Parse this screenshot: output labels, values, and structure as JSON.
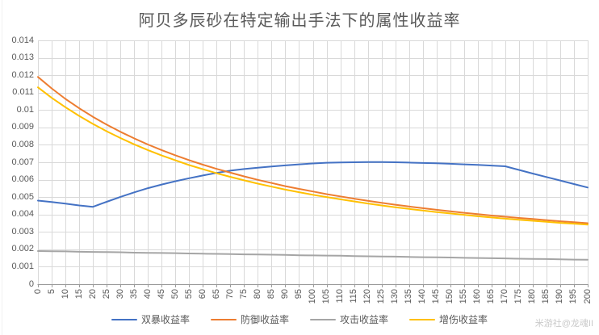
{
  "title": "阿贝多辰砂在特定输出手法下的属性收益率",
  "watermark": "米游社@龙魂II",
  "colors": {
    "background": "#FFFFFF",
    "title_text": "#595959",
    "axis_text": "#595959",
    "gridline": "#D9D9D9",
    "axis_line": "#9B9B9B",
    "watermark_text": "#C9C9C9",
    "series_blue": "#4472C4",
    "series_orange": "#ED7D31",
    "series_gray": "#A5A5A5",
    "series_yellow": "#FFC000"
  },
  "chart_data": {
    "type": "line",
    "title": "阿贝多辰砂在特定输出手法下的属性收益率",
    "xlabel": "",
    "ylabel": "",
    "grid": true,
    "legend_position": "bottom",
    "ylim": [
      0,
      0.014
    ],
    "y_tick_labels": [
      "0",
      "0.001",
      "0.002",
      "0.003",
      "0.004",
      "0.005",
      "0.006",
      "0.007",
      "0.008",
      "0.009",
      "0.01",
      "0.011",
      "0.012",
      "0.013",
      "0.014"
    ],
    "x": [
      0,
      5,
      10,
      15,
      20,
      25,
      30,
      35,
      40,
      45,
      50,
      55,
      60,
      65,
      70,
      75,
      80,
      85,
      90,
      95,
      100,
      105,
      110,
      115,
      120,
      125,
      130,
      135,
      140,
      145,
      150,
      155,
      160,
      165,
      170,
      175,
      180,
      185,
      190,
      195,
      200
    ],
    "series": [
      {
        "name": "双暴收益率",
        "color": "#4472C4",
        "values": [
          0.0048,
          0.00472,
          0.00462,
          0.00452,
          0.00444,
          0.00473,
          0.00501,
          0.00527,
          0.00551,
          0.00572,
          0.00591,
          0.00608,
          0.00624,
          0.00639,
          0.00652,
          0.00661,
          0.00669,
          0.00676,
          0.00682,
          0.00688,
          0.00693,
          0.00697,
          0.00699,
          0.007,
          0.00701,
          0.00701,
          0.007,
          0.00698,
          0.00696,
          0.00694,
          0.00691,
          0.00688,
          0.00685,
          0.00681,
          0.00677,
          0.00656,
          0.00635,
          0.00615,
          0.00595,
          0.00575,
          0.00555
        ]
      },
      {
        "name": "防御收益率",
        "color": "#ED7D31",
        "values": [
          0.0119,
          0.01124,
          0.01064,
          0.0101,
          0.00961,
          0.00916,
          0.00875,
          0.00837,
          0.00802,
          0.0077,
          0.0074,
          0.00712,
          0.00686,
          0.00662,
          0.0064,
          0.00619,
          0.00599,
          0.00581,
          0.00563,
          0.00547,
          0.00532,
          0.00517,
          0.00504,
          0.00491,
          0.00479,
          0.00467,
          0.00456,
          0.00446,
          0.00436,
          0.00427,
          0.00418,
          0.0041,
          0.00402,
          0.00394,
          0.00387,
          0.0038,
          0.00374,
          0.00367,
          0.00361,
          0.00356,
          0.0035
        ]
      },
      {
        "name": "攻击收益率",
        "color": "#A5A5A5",
        "values": [
          0.0019,
          0.00189,
          0.00188,
          0.00186,
          0.00185,
          0.00184,
          0.00183,
          0.00181,
          0.0018,
          0.00179,
          0.00178,
          0.00176,
          0.00175,
          0.00174,
          0.00173,
          0.00171,
          0.0017,
          0.00169,
          0.00168,
          0.00166,
          0.00165,
          0.00164,
          0.00163,
          0.00161,
          0.0016,
          0.00159,
          0.00158,
          0.00156,
          0.00155,
          0.00154,
          0.00153,
          0.00151,
          0.0015,
          0.00149,
          0.00148,
          0.00146,
          0.00145,
          0.00144,
          0.00143,
          0.00141,
          0.0014
        ]
      },
      {
        "name": "增伤收益率",
        "color": "#FFC000",
        "values": [
          0.0113,
          0.0107,
          0.01016,
          0.00966,
          0.0092,
          0.00878,
          0.00839,
          0.00803,
          0.0077,
          0.00739,
          0.00711,
          0.00684,
          0.0066,
          0.00637,
          0.00616,
          0.00596,
          0.00577,
          0.0056,
          0.00543,
          0.00528,
          0.00513,
          0.005,
          0.00487,
          0.00475,
          0.00463,
          0.00452,
          0.00442,
          0.00432,
          0.00423,
          0.00414,
          0.00406,
          0.00398,
          0.0039,
          0.00383,
          0.00376,
          0.0037,
          0.00364,
          0.00358,
          0.00352,
          0.00347,
          0.00342
        ]
      }
    ]
  }
}
